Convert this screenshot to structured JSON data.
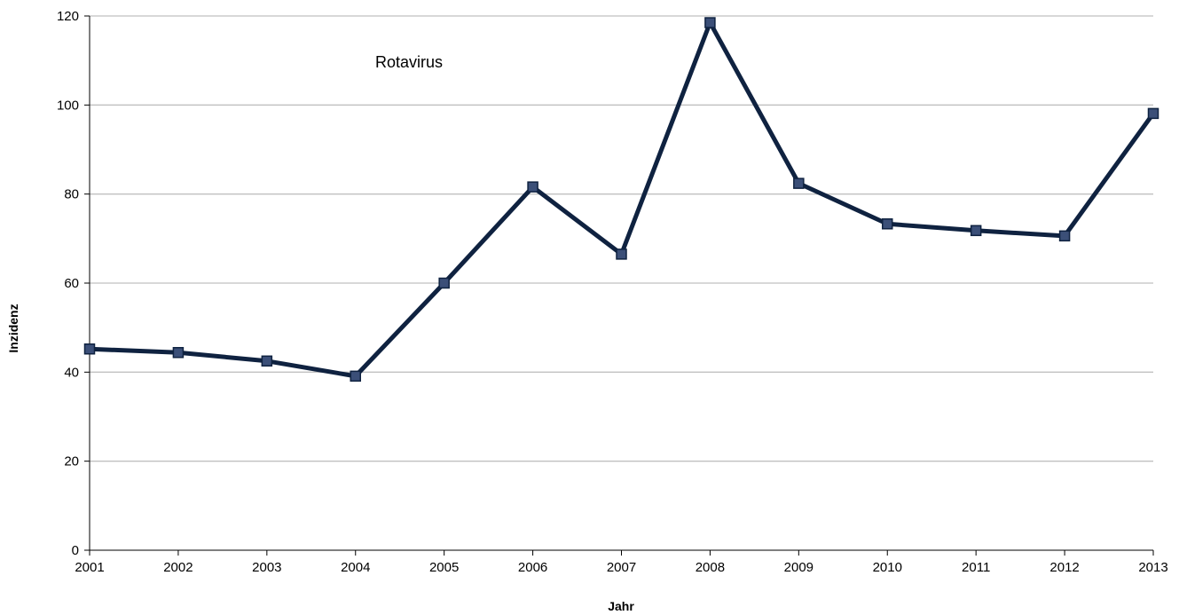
{
  "chart_data": {
    "type": "line",
    "title": "",
    "annotation": "Rotavirus",
    "xlabel": "Jahr",
    "ylabel": "Inzidenz",
    "x": [
      "2001",
      "2002",
      "2003",
      "2004",
      "2005",
      "2006",
      "2007",
      "2008",
      "2009",
      "2010",
      "2011",
      "2012",
      "2013"
    ],
    "series": [
      {
        "values": [
          45.2,
          44.4,
          42.5,
          39.1,
          60.0,
          81.6,
          66.5,
          118.5,
          82.4,
          73.3,
          71.8,
          70.6,
          98.1
        ]
      }
    ],
    "ylim": [
      0,
      120
    ],
    "yticks": [
      "0",
      "20",
      "40",
      "60",
      "80",
      "100",
      "120"
    ],
    "grid": true,
    "legend": "none",
    "colors": {
      "line": "#0f2240",
      "marker_fill": "#3b4f78",
      "marker_stroke": "#0f2240",
      "grid": "#c0c0c0",
      "axis": "#000000"
    }
  }
}
